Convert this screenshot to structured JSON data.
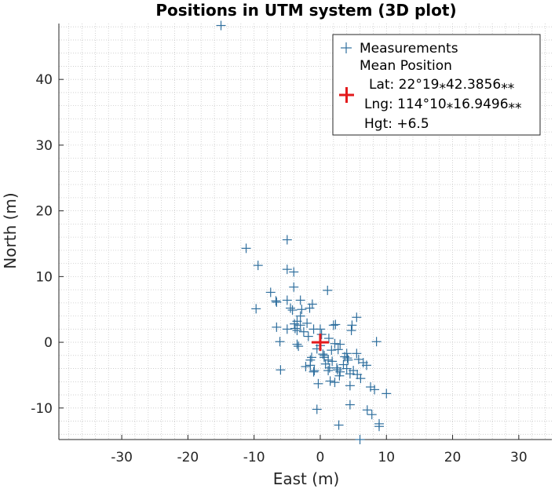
{
  "chart_data": {
    "type": "scatter",
    "title": "Positions in UTM system (3D plot)",
    "xlabel": "East (m)",
    "ylabel": "North (m)",
    "xlim": [
      -39.5,
      35
    ],
    "ylim": [
      -14.8,
      48.5
    ],
    "xticks": [
      -30,
      -20,
      -10,
      0,
      10,
      20,
      30
    ],
    "yticks": [
      -10,
      0,
      10,
      20,
      30,
      40
    ],
    "grid": "minor-dotted",
    "legend_position": "top-right",
    "colors": {
      "measurements": "#2f6f9e",
      "mean": "#e31a1c",
      "grid": "#c8c8c8"
    },
    "series": [
      {
        "name": "Measurements",
        "marker": "plus",
        "points": [
          [
            -15,
            48.2
          ],
          [
            -11.2,
            14.3
          ],
          [
            -9.4,
            11.7
          ],
          [
            -9.7,
            5.1
          ],
          [
            -7.5,
            7.6
          ],
          [
            -6.7,
            6.3
          ],
          [
            -6.6,
            6.1
          ],
          [
            -6.6,
            2.3
          ],
          [
            -6.1,
            0.1
          ],
          [
            -6,
            -4.2
          ],
          [
            -5,
            15.6
          ],
          [
            -5,
            11.1
          ],
          [
            -5,
            6.4
          ],
          [
            -5,
            2.0
          ],
          [
            -4.5,
            5.2
          ],
          [
            -4,
            10.7
          ],
          [
            -4,
            8.4
          ],
          [
            -4.2,
            4.9
          ],
          [
            -3.9,
            2.8
          ],
          [
            -3.8,
            2.1
          ],
          [
            -3.5,
            1.8
          ],
          [
            -3.5,
            -0.3
          ],
          [
            -3.3,
            -0.6
          ],
          [
            -3,
            6.4
          ],
          [
            -3,
            4.0
          ],
          [
            -3,
            2.6
          ],
          [
            -3.5,
            3.2
          ],
          [
            -2.8,
            5.0
          ],
          [
            -2.5,
            1.6
          ],
          [
            -2.2,
            -3.7
          ],
          [
            -2,
            2.9
          ],
          [
            -1.8,
            0.9
          ],
          [
            -1.6,
            5.2
          ],
          [
            -1.5,
            -3.5
          ],
          [
            -1.5,
            -2.7
          ],
          [
            -1.3,
            -2.3
          ],
          [
            -1.2,
            5.8
          ],
          [
            -1,
            2.0
          ],
          [
            -1,
            -4.5
          ],
          [
            -0.9,
            -4.3
          ],
          [
            -0.5,
            -1.0
          ],
          [
            -0.5,
            -10.2
          ],
          [
            -0.3,
            -6.3
          ],
          [
            0,
            2.0
          ],
          [
            0,
            -0.5
          ],
          [
            0.2,
            1.2
          ],
          [
            0.4,
            -1.8
          ],
          [
            0.6,
            -2.0
          ],
          [
            0.6,
            -2.3
          ],
          [
            0.8,
            -3.3
          ],
          [
            1.1,
            7.9
          ],
          [
            1.2,
            -2.7
          ],
          [
            1.2,
            -4.3
          ],
          [
            1.3,
            0.6
          ],
          [
            1.4,
            -3.9
          ],
          [
            1.5,
            -5.9
          ],
          [
            1.7,
            -1.2
          ],
          [
            1.8,
            -2.9
          ],
          [
            2.0,
            2.6
          ],
          [
            2.2,
            -6.1
          ],
          [
            2.2,
            -0.2
          ],
          [
            2.3,
            2.7
          ],
          [
            2.5,
            -3.9
          ],
          [
            2.6,
            -4.2
          ],
          [
            2.7,
            -1.1
          ],
          [
            2.8,
            -12.6
          ],
          [
            2.9,
            -5.1
          ],
          [
            3.0,
            -0.3
          ],
          [
            3.0,
            -4.5
          ],
          [
            3.5,
            -3.4
          ],
          [
            3.7,
            -2.2
          ],
          [
            4.0,
            -4.0
          ],
          [
            4.0,
            -1.7
          ],
          [
            4.1,
            -2.4
          ],
          [
            4.2,
            -2.7
          ],
          [
            4.5,
            -6.6
          ],
          [
            4.5,
            -9.5
          ],
          [
            4.5,
            -4.8
          ],
          [
            4.7,
            1.8
          ],
          [
            4.8,
            2.6
          ],
          [
            5.0,
            -4.3
          ],
          [
            5.5,
            3.8
          ],
          [
            5.5,
            -1.7
          ],
          [
            5.6,
            -4.9
          ],
          [
            5.8,
            -2.6
          ],
          [
            6.0,
            -14.8
          ],
          [
            6.1,
            -5.5
          ],
          [
            6.5,
            -3.1
          ],
          [
            7.0,
            -3.5
          ],
          [
            7.1,
            -10.3
          ],
          [
            7.8,
            -11.0
          ],
          [
            7.6,
            -6.8
          ],
          [
            8.2,
            -7.2
          ],
          [
            8.5,
            0.1
          ],
          [
            8.9,
            -12.4
          ],
          [
            8.9,
            -12.8
          ],
          [
            10.0,
            -7.8
          ]
        ]
      },
      {
        "name": "Mean Position",
        "marker": "plus-large",
        "points": [
          [
            0,
            0
          ]
        ],
        "lines": [
          "Lat: 22°19⁎42.3856⁎⁎",
          "Lng: 114°10⁎16.9496⁎⁎",
          "Hgt: +6.5"
        ]
      }
    ]
  }
}
